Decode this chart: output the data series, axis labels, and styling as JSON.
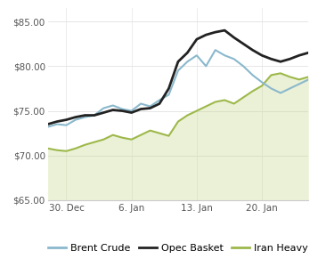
{
  "ylim": [
    65.0,
    86.5
  ],
  "xlim": [
    0,
    28
  ],
  "yticks": [
    65.0,
    70.0,
    75.0,
    80.0,
    85.0
  ],
  "xtick_positions": [
    2,
    9,
    16,
    23
  ],
  "xtick_labels": [
    "30. Dec",
    "6. Jan",
    "13. Jan",
    "20. Jan"
  ],
  "background_color": "#ffffff",
  "grid_color": "#e5e5e5",
  "brent_crude": {
    "label": "Brent Crude",
    "color": "#8ab8cc",
    "linewidth": 1.5,
    "values": [
      73.2,
      73.5,
      73.4,
      74.0,
      74.3,
      74.5,
      75.3,
      75.6,
      75.2,
      75.0,
      75.8,
      75.5,
      76.2,
      76.8,
      79.5,
      80.5,
      81.2,
      80.0,
      81.8,
      81.2,
      80.8,
      80.0,
      79.0,
      78.2,
      77.5,
      77.0,
      77.5,
      78.0,
      78.5
    ]
  },
  "opec_basket": {
    "label": "Opec Basket",
    "color": "#222222",
    "linewidth": 2.0,
    "values": [
      73.5,
      73.8,
      74.0,
      74.3,
      74.5,
      74.5,
      74.8,
      75.1,
      75.0,
      74.8,
      75.2,
      75.3,
      75.8,
      77.5,
      80.5,
      81.5,
      83.0,
      83.5,
      83.8,
      84.0,
      83.2,
      82.5,
      81.8,
      81.2,
      80.8,
      80.5,
      80.8,
      81.2,
      81.5
    ]
  },
  "iran_heavy": {
    "label": "Iran Heavy",
    "color": "#9db84a",
    "fill_color": "#c8d98a",
    "linewidth": 1.5,
    "values": [
      70.8,
      70.6,
      70.5,
      70.8,
      71.2,
      71.5,
      71.8,
      72.3,
      72.0,
      71.8,
      72.3,
      72.8,
      72.5,
      72.2,
      73.8,
      74.5,
      75.0,
      75.5,
      76.0,
      76.2,
      75.8,
      76.5,
      77.2,
      77.8,
      79.0,
      79.2,
      78.8,
      78.5,
      78.8
    ]
  },
  "legend_order": [
    "brent_crude",
    "opec_basket",
    "iran_heavy"
  ],
  "legend_labels": [
    "Brent Crude",
    "Opec Basket",
    "Iran Heavy"
  ],
  "legend_colors": [
    "#8ab8cc",
    "#222222",
    "#9db84a"
  ]
}
